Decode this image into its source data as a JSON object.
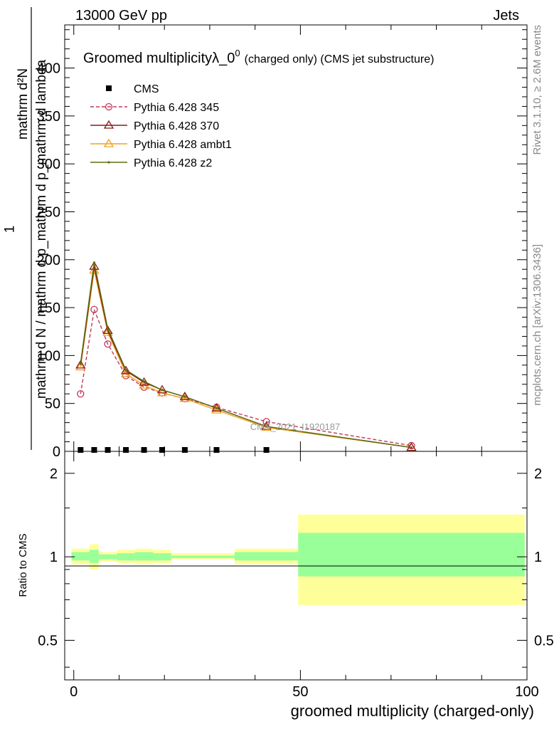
{
  "header": {
    "left": "13000 GeV pp",
    "right": "Jets"
  },
  "side_labels": {
    "rivet": "Rivet 3.1.10, ≥ 2.6M events",
    "mcplots": "mcplots.cern.ch [arXiv:1306.3436]"
  },
  "chart_data": [
    {
      "type": "line",
      "title_main": "Groomed multiplicityλ_0",
      "title_sup": "0",
      "title_note": "(charged only) (CMS jet substructure)",
      "ylabel_top": "1",
      "ylabel_num": "mathrm d²N",
      "ylabel_den": "mathrm d N / mathrm d p_mathrm d p_mathrm d lambda",
      "watermark": "CMS_2021_I1920187",
      "xlim": [
        -2,
        100
      ],
      "ylim": [
        0,
        445
      ],
      "yticks": [
        0,
        50,
        100,
        150,
        200,
        250,
        300,
        350,
        400
      ],
      "legend_position": "top-left",
      "series": [
        {
          "name": "CMS",
          "color": "#000000",
          "marker": "square",
          "x": [
            1.5,
            4.5,
            7.5,
            11.5,
            15.5,
            19.5,
            24.5,
            31.5,
            42.5
          ],
          "y": [
            0,
            0,
            0,
            0,
            0,
            0,
            0,
            0,
            0
          ]
        },
        {
          "name": "Pythia 6.428 345",
          "color": "#c0395a",
          "marker": "circle",
          "dashed": true,
          "x": [
            1.5,
            4.5,
            7.5,
            11.5,
            15.5,
            19.5,
            24.5,
            31.5,
            42.5,
            74.5
          ],
          "y": [
            60,
            148,
            112,
            79,
            67,
            61,
            55,
            46,
            31,
            6
          ]
        },
        {
          "name": "Pythia 6.428 370",
          "color": "#8b1a1a",
          "marker": "triangle",
          "x": [
            1.5,
            4.5,
            7.5,
            11.5,
            15.5,
            19.5,
            24.5,
            31.5,
            42.5,
            74.5
          ],
          "y": [
            90,
            193,
            126,
            84,
            72,
            64,
            57,
            45,
            26,
            4
          ]
        },
        {
          "name": "Pythia 6.428 ambt1",
          "color": "#f0a020",
          "marker": "triangle",
          "x": [
            1.5,
            4.5,
            7.5,
            11.5,
            15.5,
            19.5,
            24.5,
            31.5,
            42.5,
            74.5
          ],
          "y": [
            88,
            189,
            124,
            81,
            69,
            61,
            55,
            43,
            25,
            4
          ]
        },
        {
          "name": "Pythia 6.428 z2",
          "color": "#5a7010",
          "marker": "dot",
          "x": [
            1.5,
            4.5,
            7.5,
            11.5,
            15.5,
            19.5,
            24.5,
            31.5,
            42.5,
            74.5
          ],
          "y": [
            92,
            197,
            128,
            85,
            73,
            64,
            57,
            45,
            26,
            4
          ]
        }
      ]
    },
    {
      "type": "area",
      "ylabel": "Ratio to CMS",
      "xlabel": "groomed multiplicity (charged-only)",
      "xlim": [
        -2,
        100
      ],
      "ylim": [
        0.36,
        2.4
      ],
      "log_y": true,
      "xticks": [
        0,
        50,
        100
      ],
      "yticks": [
        0.5,
        1,
        2
      ],
      "band_colors": {
        "outer": "#ffff99",
        "inner": "#99ff99"
      },
      "bins": [
        {
          "x0": -0.5,
          "x1": 3.5,
          "outer": [
            0.94,
            1.07
          ],
          "inner": [
            0.97,
            1.04
          ]
        },
        {
          "x0": 3.5,
          "x1": 5.5,
          "outer": [
            0.9,
            1.11
          ],
          "inner": [
            0.95,
            1.06
          ]
        },
        {
          "x0": 5.5,
          "x1": 9.5,
          "outer": [
            0.96,
            1.04
          ],
          "inner": [
            0.98,
            1.02
          ]
        },
        {
          "x0": 9.5,
          "x1": 13.5,
          "outer": [
            0.95,
            1.06
          ],
          "inner": [
            0.97,
            1.03
          ]
        },
        {
          "x0": 13.5,
          "x1": 17.5,
          "outer": [
            0.94,
            1.07
          ],
          "inner": [
            0.97,
            1.04
          ]
        },
        {
          "x0": 17.5,
          "x1": 21.5,
          "outer": [
            0.95,
            1.06
          ],
          "inner": [
            0.97,
            1.03
          ]
        },
        {
          "x0": 21.5,
          "x1": 35.5,
          "outer": [
            0.98,
            1.03
          ],
          "inner": [
            0.99,
            1.01
          ]
        },
        {
          "x0": 35.5,
          "x1": 49.5,
          "outer": [
            0.94,
            1.07
          ],
          "inner": [
            0.97,
            1.04
          ]
        },
        {
          "x0": 49.5,
          "x1": 99.5,
          "outer": [
            0.67,
            1.42
          ],
          "inner": [
            0.85,
            1.22
          ]
        }
      ]
    }
  ]
}
